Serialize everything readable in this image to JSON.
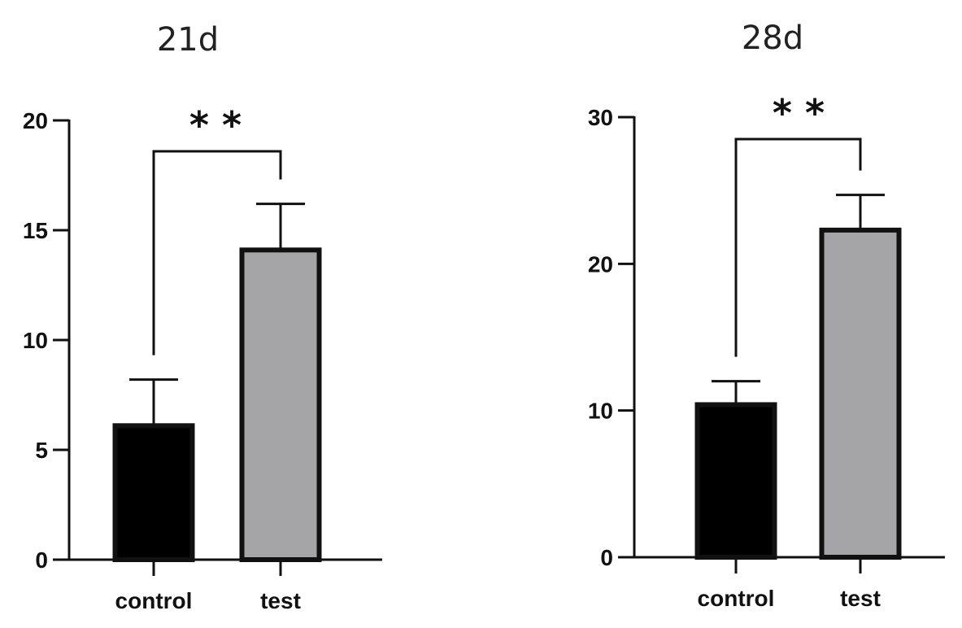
{
  "chart_data": [
    {
      "type": "bar",
      "title": "21d",
      "categories": [
        "control",
        "test"
      ],
      "values": [
        6.1,
        14.1
      ],
      "errors": [
        2.1,
        2.1
      ],
      "ylim": [
        0,
        20
      ],
      "yticks": [
        0,
        5,
        10,
        15,
        20
      ],
      "significance": {
        "between": [
          0,
          1
        ],
        "label": "* *"
      },
      "colors": [
        "#000000",
        "#a5a5a8"
      ],
      "grid": false,
      "legend": "none"
    },
    {
      "type": "bar",
      "title": "28d",
      "categories": [
        "control",
        "test"
      ],
      "values": [
        10.4,
        22.3
      ],
      "errors": [
        1.6,
        2.4
      ],
      "ylim": [
        0,
        30
      ],
      "yticks": [
        0,
        10,
        20,
        30
      ],
      "significance": {
        "between": [
          0,
          1
        ],
        "label": "* *"
      },
      "colors": [
        "#000000",
        "#a5a5a8"
      ],
      "grid": false,
      "legend": "none"
    }
  ]
}
